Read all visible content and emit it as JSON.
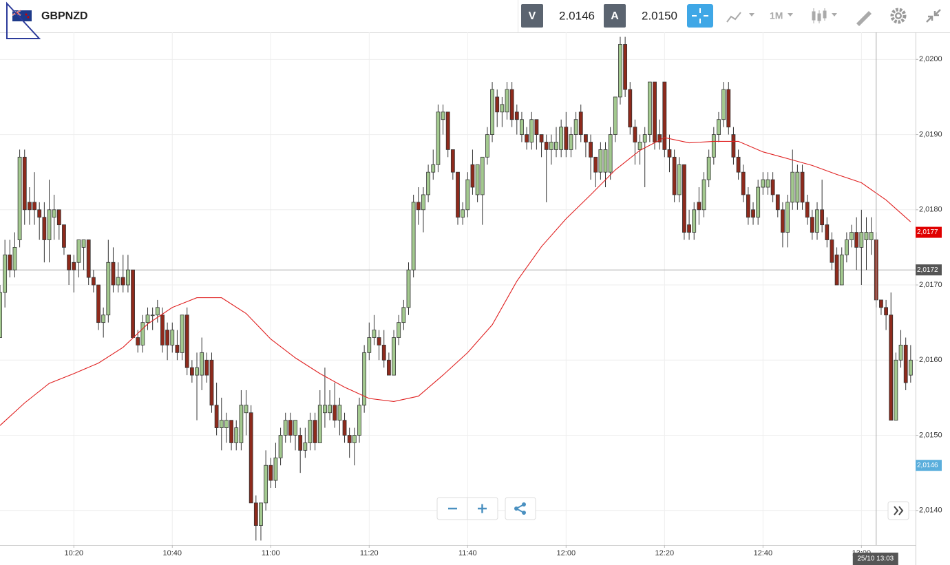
{
  "header": {
    "symbol": "GBPNZD",
    "bid_label": "V",
    "bid": "2.0146",
    "ask_label": "A",
    "ask": "2.0150",
    "timeframe": "1M"
  },
  "chart_data": {
    "type": "candlestick",
    "x": [
      "10:05",
      "10:06",
      "10:07",
      "10:08",
      "10:09",
      "10:10",
      "10:11",
      "10:12",
      "10:13",
      "10:14",
      "10:15",
      "10:16",
      "10:17",
      "10:18",
      "10:19",
      "10:20",
      "10:21",
      "10:22",
      "10:23",
      "10:24",
      "10:25",
      "10:26",
      "10:27",
      "10:28",
      "10:29",
      "10:30",
      "10:31",
      "10:32",
      "10:33",
      "10:34",
      "10:35",
      "10:36",
      "10:37",
      "10:38",
      "10:39",
      "10:40",
      "10:41",
      "10:42",
      "10:43",
      "10:44",
      "10:45",
      "10:46",
      "10:47",
      "10:48",
      "10:49",
      "10:50",
      "10:51",
      "10:52",
      "10:53",
      "10:54",
      "10:55",
      "10:56",
      "10:57",
      "10:58",
      "10:59",
      "11:00",
      "11:01",
      "11:02",
      "11:03",
      "11:04",
      "11:05",
      "11:06",
      "11:07",
      "11:08",
      "11:09",
      "11:10",
      "11:11",
      "11:12",
      "11:13",
      "11:14",
      "11:15",
      "11:16",
      "11:17",
      "11:18",
      "11:19",
      "11:20",
      "11:21",
      "11:22",
      "11:23",
      "11:24",
      "11:25",
      "11:26",
      "11:27",
      "11:28",
      "11:29",
      "11:30",
      "11:31",
      "11:32",
      "11:33",
      "11:34",
      "11:35",
      "11:36",
      "11:37",
      "11:38",
      "11:39",
      "11:40",
      "11:41",
      "11:42",
      "11:43",
      "11:44",
      "11:45",
      "11:46",
      "11:47",
      "11:48",
      "11:49",
      "11:50",
      "11:51",
      "11:52",
      "11:53",
      "11:54",
      "11:55",
      "11:56",
      "11:57",
      "11:58",
      "11:59",
      "12:00",
      "12:01",
      "12:02",
      "12:03",
      "12:04",
      "12:05",
      "12:06",
      "12:07",
      "12:08",
      "12:09",
      "12:10",
      "12:11",
      "12:12",
      "12:13",
      "12:14",
      "12:15",
      "12:16",
      "12:17",
      "12:18",
      "12:19",
      "12:20",
      "12:21",
      "12:22",
      "12:23",
      "12:24",
      "12:25",
      "12:26",
      "12:27",
      "12:28",
      "12:29",
      "12:30",
      "12:31",
      "12:32",
      "12:33",
      "12:34",
      "12:35",
      "12:36",
      "12:37",
      "12:38",
      "12:39",
      "12:40",
      "12:41",
      "12:42",
      "12:43",
      "12:44",
      "12:45",
      "12:46",
      "12:47",
      "12:48",
      "12:49",
      "12:50",
      "12:51",
      "12:52",
      "12:53",
      "12:54",
      "12:55",
      "12:56",
      "12:57",
      "12:58",
      "12:59",
      "13:00",
      "13:01",
      "13:02",
      "13:03",
      "13:04",
      "13:05",
      "13:06",
      "13:07",
      "13:08",
      "13:09",
      "13:10"
    ],
    "open": [
      2.0163,
      2.0169,
      2.0174,
      2.0172,
      2.0176,
      2.0187,
      2.0181,
      2.0181,
      2.018,
      2.0179,
      2.0176,
      2.0179,
      2.018,
      2.0178,
      2.0174,
      2.0173,
      2.0173,
      2.0175,
      2.0176,
      2.0171,
      2.017,
      2.0165,
      2.0166,
      2.0173,
      2.017,
      2.0171,
      2.017,
      2.0172,
      2.0163,
      2.0162,
      2.0165,
      2.0166,
      2.0166,
      2.0166,
      2.0164,
      2.0162,
      2.0162,
      2.0161,
      2.0166,
      2.0159,
      2.0158,
      2.0158,
      2.016,
      2.016,
      2.0154,
      2.0151,
      2.0151,
      2.0152,
      2.0149,
      2.0149,
      2.0153,
      2.0153,
      2.0141,
      2.0138,
      2.0141,
      2.0146,
      2.0144,
      2.0147,
      2.015,
      2.0152,
      2.015,
      2.015,
      2.0148,
      2.0149,
      2.0152,
      2.0149,
      2.0153,
      2.0153,
      2.0154,
      2.0152,
      2.0152,
      2.015,
      2.0149,
      2.015,
      2.0154,
      2.0161,
      2.0163,
      2.0163,
      2.0162,
      2.016,
      2.0158,
      2.0163,
      2.0165,
      2.0167,
      2.0172,
      2.0181,
      2.018,
      2.0182,
      2.0185,
      2.0186,
      2.0192,
      2.0193,
      2.0188,
      2.0185,
      2.0179,
      2.018,
      2.0186,
      2.0182,
      2.0182,
      2.0187,
      2.019,
      2.0195,
      2.0193,
      2.0193,
      2.0196,
      2.0193,
      2.019,
      2.019,
      2.0189,
      2.0192,
      2.019,
      2.0189,
      2.0188,
      2.0188,
      2.0188,
      2.0191,
      2.0188,
      2.019,
      2.0193,
      2.019,
      2.0189,
      2.0187,
      2.0185,
      2.0185,
      2.0185,
      2.019,
      2.0195,
      2.0202,
      2.0196,
      2.0191,
      2.0188,
      2.0189,
      2.019,
      2.0197,
      2.019,
      2.0197,
      2.0188,
      2.0187,
      2.0182,
      2.0186,
      2.0178,
      2.0177,
      2.0181,
      2.018,
      2.0184,
      2.0187,
      2.019,
      2.0192,
      2.0196,
      2.019,
      2.0187,
      2.0185,
      2.0182,
      2.018,
      2.0179,
      2.0183,
      2.0183,
      2.0184,
      2.0182,
      2.018,
      2.0177,
      2.0181,
      2.0181,
      2.0185,
      2.0181,
      2.0179,
      2.0177,
      2.018,
      2.0178,
      2.0176,
      2.0174,
      2.017,
      2.0174,
      2.0176,
      2.0177,
      2.0175,
      2.0176,
      2.0176,
      2.0176,
      2.0168,
      2.0167,
      2.0166,
      2.0152,
      2.016,
      2.0162,
      2.0158
    ],
    "high": [
      2.017,
      2.0176,
      2.0176,
      2.0177,
      2.0188,
      2.0188,
      2.0183,
      2.0185,
      2.0181,
      2.0181,
      2.0184,
      2.0182,
      2.018,
      2.0178,
      2.0174,
      2.0174,
      2.0176,
      2.0176,
      2.0176,
      2.0172,
      2.017,
      2.0167,
      2.0176,
      2.0175,
      2.0173,
      2.0174,
      2.0174,
      2.0172,
      2.0164,
      2.0166,
      2.0167,
      2.0167,
      2.0168,
      2.0167,
      2.0165,
      2.0165,
      2.0164,
      2.0166,
      2.0167,
      2.016,
      2.0161,
      2.0163,
      2.0161,
      2.0161,
      2.0157,
      2.0155,
      2.0153,
      2.0152,
      2.0152,
      2.0156,
      2.0156,
      2.0154,
      2.0142,
      2.0141,
      2.0148,
      2.0147,
      2.0149,
      2.0151,
      2.0153,
      2.0153,
      2.0152,
      2.0151,
      2.0151,
      2.0153,
      2.0153,
      2.0156,
      2.0159,
      2.0156,
      2.0157,
      2.0155,
      2.0153,
      2.0151,
      2.0151,
      2.0155,
      2.0162,
      2.0165,
      2.0166,
      2.0164,
      2.0164,
      2.0161,
      2.0164,
      2.0166,
      2.0168,
      2.0173,
      2.0182,
      2.0183,
      2.0183,
      2.0186,
      2.0188,
      2.0194,
      2.0194,
      2.0193,
      2.0188,
      2.0185,
      2.0181,
      2.0185,
      2.0188,
      2.0186,
      2.0187,
      2.0191,
      2.0197,
      2.0196,
      2.0195,
      2.0197,
      2.0197,
      2.0194,
      2.0193,
      2.0191,
      2.0193,
      2.0192,
      2.019,
      2.019,
      2.019,
      2.0191,
      2.0192,
      2.0193,
      2.0191,
      2.0193,
      2.0194,
      2.019,
      2.019,
      2.0187,
      2.0189,
      2.0189,
      2.0191,
      2.0195,
      2.0203,
      2.0203,
      2.0197,
      2.0192,
      2.019,
      2.0191,
      2.0197,
      2.0197,
      2.0192,
      2.0197,
      2.019,
      2.0188,
      2.0187,
      2.0186,
      2.018,
      2.0181,
      2.0183,
      2.0185,
      2.0188,
      2.0191,
      2.0193,
      2.0197,
      2.0197,
      2.0191,
      2.0188,
      2.0186,
      2.0183,
      2.0181,
      2.0184,
      2.0185,
      2.0185,
      2.0185,
      2.0182,
      2.0181,
      2.0182,
      2.0188,
      2.0186,
      2.0186,
      2.0182,
      2.018,
      2.0181,
      2.0184,
      2.0179,
      2.0177,
      2.0175,
      2.0175,
      2.0177,
      2.0178,
      2.0179,
      2.018,
      2.0179,
      2.0179,
      2.0177,
      2.0168,
      2.0168,
      2.0169,
      2.0161,
      2.0164,
      2.0163,
      2.0162
    ],
    "low": [
      2.0163,
      2.0167,
      2.0171,
      2.0171,
      2.0175,
      2.0178,
      2.0178,
      2.0178,
      2.0176,
      2.0173,
      2.0173,
      2.0176,
      2.0176,
      2.0174,
      2.017,
      2.0169,
      2.0171,
      2.0172,
      2.017,
      2.0169,
      2.0164,
      2.0163,
      2.0165,
      2.0169,
      2.0169,
      2.0169,
      2.0169,
      2.0163,
      2.0161,
      2.0161,
      2.0164,
      2.0164,
      2.0165,
      2.0161,
      2.016,
      2.0161,
      2.016,
      2.016,
      2.0158,
      2.0157,
      2.0152,
      2.0156,
      2.0157,
      2.0153,
      2.015,
      2.0148,
      2.0149,
      2.0148,
      2.0148,
      2.0148,
      2.015,
      2.0141,
      2.0136,
      2.0136,
      2.014,
      2.0143,
      2.0143,
      2.0146,
      2.0149,
      2.0149,
      2.0148,
      2.0145,
      2.0147,
      2.0148,
      2.0148,
      2.0149,
      2.0151,
      2.0152,
      2.0151,
      2.015,
      2.0149,
      2.0147,
      2.0146,
      2.0149,
      2.0153,
      2.016,
      2.0162,
      2.016,
      2.0159,
      2.0158,
      2.0158,
      2.0162,
      2.0164,
      2.0166,
      2.0171,
      2.0178,
      2.0177,
      2.0181,
      2.0184,
      2.0185,
      2.019,
      2.0187,
      2.0184,
      2.0178,
      2.0178,
      2.0179,
      2.0182,
      2.0181,
      2.0178,
      2.0186,
      2.0189,
      2.0191,
      2.0191,
      2.0192,
      2.0191,
      2.019,
      2.0189,
      2.0188,
      2.0188,
      2.0188,
      2.0187,
      2.0181,
      2.0186,
      2.0187,
      2.0187,
      2.0187,
      2.0187,
      2.0188,
      2.0189,
      2.0187,
      2.0184,
      2.0183,
      2.0184,
      2.0183,
      2.0184,
      2.0189,
      2.0194,
      2.0195,
      2.019,
      2.0186,
      2.0186,
      2.0183,
      2.0189,
      2.0188,
      2.0188,
      2.0187,
      2.0185,
      2.0181,
      2.0181,
      2.0176,
      2.0176,
      2.0176,
      2.0178,
      2.0179,
      2.0183,
      2.0186,
      2.0189,
      2.0191,
      2.019,
      2.0186,
      2.0184,
      2.0181,
      2.0178,
      2.0178,
      2.0178,
      2.0182,
      2.0182,
      2.0181,
      2.0179,
      2.0175,
      2.0175,
      2.018,
      2.018,
      2.018,
      2.0178,
      2.0176,
      2.0176,
      2.0177,
      2.0175,
      2.0172,
      2.017,
      2.017,
      2.0173,
      2.0175,
      2.0172,
      2.017,
      2.0172,
      2.0174,
      2.0167,
      2.0166,
      2.0164,
      2.0152,
      2.0152,
      2.0159,
      2.0156,
      2.0157
    ],
    "close": [
      2.0169,
      2.0174,
      2.0172,
      2.0175,
      2.0187,
      2.018,
      2.018,
      2.018,
      2.0179,
      2.0176,
      2.018,
      2.018,
      2.0178,
      2.0175,
      2.0172,
      2.0172,
      2.0176,
      2.0176,
      2.0171,
      2.017,
      2.0165,
      2.0166,
      2.0173,
      2.017,
      2.0171,
      2.017,
      2.0172,
      2.0163,
      2.0162,
      2.0165,
      2.0166,
      2.0166,
      2.0167,
      2.0162,
      2.0162,
      2.0164,
      2.0161,
      2.0166,
      2.0159,
      2.0158,
      2.0159,
      2.0161,
      2.0158,
      2.0154,
      2.0151,
      2.0152,
      2.0152,
      2.0149,
      2.0151,
      2.0154,
      2.0154,
      2.0141,
      2.0138,
      2.0141,
      2.0146,
      2.0144,
      2.0147,
      2.015,
      2.0152,
      2.015,
      2.0152,
      2.0148,
      2.0149,
      2.0152,
      2.0149,
      2.0154,
      2.0154,
      2.0154,
      2.0152,
      2.0154,
      2.015,
      2.0149,
      2.015,
      2.0154,
      2.0161,
      2.0163,
      2.0164,
      2.0162,
      2.016,
      2.0158,
      2.0163,
      2.0165,
      2.0167,
      2.0172,
      2.0181,
      2.018,
      2.0182,
      2.0185,
      2.0186,
      2.0193,
      2.0193,
      2.0188,
      2.0185,
      2.0179,
      2.018,
      2.0184,
      2.0183,
      2.0186,
      2.0187,
      2.019,
      2.0196,
      2.0193,
      2.0194,
      2.0196,
      2.0192,
      2.0192,
      2.0192,
      2.0189,
      2.0192,
      2.019,
      2.0189,
      2.0188,
      2.0189,
      2.0189,
      2.0191,
      2.0188,
      2.019,
      2.0192,
      2.019,
      2.0189,
      2.0187,
      2.0185,
      2.0188,
      2.0188,
      2.019,
      2.0195,
      2.0202,
      2.0196,
      2.0191,
      2.0189,
      2.0189,
      2.019,
      2.0197,
      2.0189,
      2.0189,
      2.0188,
      2.0187,
      2.0182,
      2.0186,
      2.0177,
      2.0177,
      2.018,
      2.018,
      2.0184,
      2.0187,
      2.019,
      2.0192,
      2.0196,
      2.0191,
      2.0187,
      2.0185,
      2.0182,
      2.0179,
      2.0179,
      2.0183,
      2.0184,
      2.0184,
      2.0182,
      2.018,
      2.0177,
      2.0181,
      2.0185,
      2.0185,
      2.0181,
      2.0179,
      2.0177,
      2.018,
      2.0178,
      2.0176,
      2.0173,
      2.017,
      2.0174,
      2.0176,
      2.0177,
      2.0175,
      2.0177,
      2.0177,
      2.0177,
      2.0168,
      2.0167,
      2.0166,
      2.0152,
      2.016,
      2.0162,
      2.0157,
      2.016
    ],
    "up_color": "#a3c98f",
    "down_color": "#8e2a1c",
    "ma": {
      "color": "#e02020",
      "x": [
        "10:05",
        "10:10",
        "10:15",
        "10:20",
        "10:25",
        "10:30",
        "10:35",
        "10:40",
        "10:45",
        "10:50",
        "10:55",
        "11:00",
        "11:05",
        "11:10",
        "11:15",
        "11:20",
        "11:25",
        "11:30",
        "11:35",
        "11:40",
        "11:45",
        "11:50",
        "11:55",
        "12:00",
        "12:05",
        "12:10",
        "12:15",
        "12:20",
        "12:25",
        "12:30",
        "12:35",
        "12:40",
        "12:45",
        "12:50",
        "12:55",
        "13:00",
        "13:05",
        "13:10"
      ],
      "values": [
        2.01513,
        2.01543,
        2.01569,
        2.01582,
        2.01596,
        2.01617,
        2.01648,
        2.0167,
        2.01683,
        2.01683,
        2.01662,
        2.01628,
        2.01603,
        2.01582,
        2.01564,
        2.01549,
        2.01545,
        2.01552,
        2.0158,
        2.0161,
        2.01647,
        2.01705,
        2.01751,
        2.01788,
        2.0182,
        2.01853,
        2.01879,
        2.01896,
        2.01889,
        2.01891,
        2.01891,
        2.01877,
        2.01868,
        2.01859,
        2.01847,
        2.01836,
        2.01813,
        2.01784
      ]
    },
    "xlim": [
      "10:05",
      "13:11"
    ],
    "ylim": [
      2.01354,
      2.02036
    ],
    "xticks": [
      "10:20",
      "10:40",
      "11:00",
      "11:20",
      "11:40",
      "12:00",
      "12:20",
      "12:40",
      "13:00"
    ],
    "yticks": [
      {
        "value": 2.014,
        "label": "2,0140"
      },
      {
        "value": 2.015,
        "label": "2,0150"
      },
      {
        "value": 2.016,
        "label": "2,0160"
      },
      {
        "value": 2.017,
        "label": "2,0170"
      },
      {
        "value": 2.018,
        "label": "2,0180"
      },
      {
        "value": 2.019,
        "label": "2,0190"
      },
      {
        "value": 2.02,
        "label": "2,0200"
      }
    ],
    "grid": true,
    "price_markers": [
      {
        "value": 2.0177,
        "label": "2,0177",
        "color": "#e00000"
      },
      {
        "value": 2.0146,
        "label": "2,0146",
        "color": "#5aaedc"
      }
    ],
    "crosshair": {
      "x": "13:03",
      "time_label": "25/10 13:03",
      "y": {
        "value": 2.0172,
        "label": "2,0172"
      },
      "color": "#555555"
    }
  }
}
